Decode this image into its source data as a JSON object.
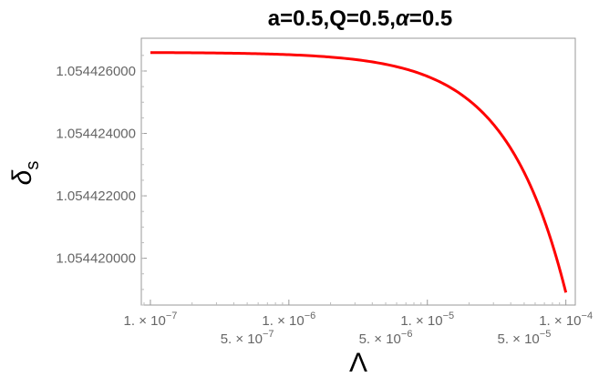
{
  "chart_data": {
    "type": "line",
    "title": "a=0.5,Q=0.5,α=0.5",
    "title_parts": {
      "pre": "a=0.5,Q=0.5,",
      "alpha": "α",
      "post": "=0.5"
    },
    "xlabel": "Λ",
    "ylabel": {
      "main": "δ",
      "sub": "s"
    },
    "x_scale": "log",
    "xlim": [
      8.6e-08,
      0.000117
    ],
    "ylim": [
      1.0544185,
      1.05442705
    ],
    "grid": false,
    "line_color": "#ff0000",
    "frame_color": "#999999",
    "x_ticks": [
      {
        "value": 1e-07,
        "mant": "1.",
        "exp": "-7"
      },
      {
        "value": 5e-07,
        "mant": "5.",
        "exp": "-7"
      },
      {
        "value": 1e-06,
        "mant": "1.",
        "exp": "-6"
      },
      {
        "value": 5e-06,
        "mant": "5.",
        "exp": "-6"
      },
      {
        "value": 1e-05,
        "mant": "1.",
        "exp": "-5"
      },
      {
        "value": 5e-05,
        "mant": "5.",
        "exp": "-5"
      },
      {
        "value": 0.0001,
        "mant": "1.",
        "exp": "-4"
      }
    ],
    "y_ticks": [
      {
        "value": 1.054426,
        "label": "1.054426000"
      },
      {
        "value": 1.054424,
        "label": "1.054424000"
      },
      {
        "value": 1.054422,
        "label": "1.054422000"
      },
      {
        "value": 1.05442,
        "label": "1.054420000"
      }
    ],
    "series": [
      {
        "x": [
          1e-07,
          2e-07,
          5e-07,
          1e-06,
          2e-06,
          5e-06,
          1e-05,
          2e-05,
          3e-05,
          4e-05,
          5e-05,
          6e-05,
          7e-05,
          8e-05,
          9e-05,
          0.0001
        ],
        "y": [
          1.054426592,
          1.054426585,
          1.054426562,
          1.054426523,
          1.054426446,
          1.054426215,
          1.05442583,
          1.05442506,
          1.05442429,
          1.05442352,
          1.05442275,
          1.05442198,
          1.05442121,
          1.05442044,
          1.05441967,
          1.0544189
        ]
      }
    ]
  }
}
